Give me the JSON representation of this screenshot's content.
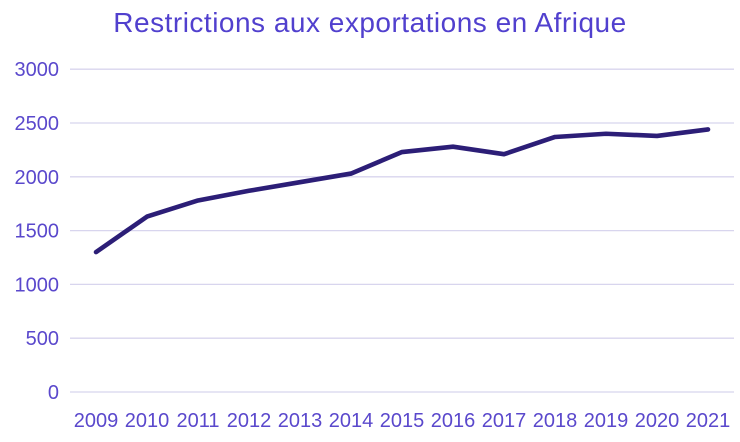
{
  "title": "Restrictions aux exportations en Afrique",
  "chart_data": {
    "type": "line",
    "title": "Restrictions aux exportations en Afrique",
    "categories": [
      "2009",
      "2010",
      "2011",
      "2012",
      "2013",
      "2014",
      "2015",
      "2016",
      "2017",
      "2018",
      "2019",
      "2020",
      "2021"
    ],
    "values": [
      1300,
      1630,
      1780,
      1870,
      1950,
      2030,
      2230,
      2280,
      2210,
      2370,
      2400,
      2380,
      2440
    ],
    "xlabel": "",
    "ylabel": "",
    "ylim": [
      0,
      3000
    ],
    "y_ticks": [
      0,
      500,
      1000,
      1500,
      2000,
      2500,
      3000
    ],
    "grid": "horizontal",
    "legend": "none",
    "colors": {
      "line": "#2c1e77",
      "title": "#5140ce",
      "tick_labels": "#5a48cc",
      "gridline": "#d8d5ee",
      "background": "#ffffff"
    }
  }
}
